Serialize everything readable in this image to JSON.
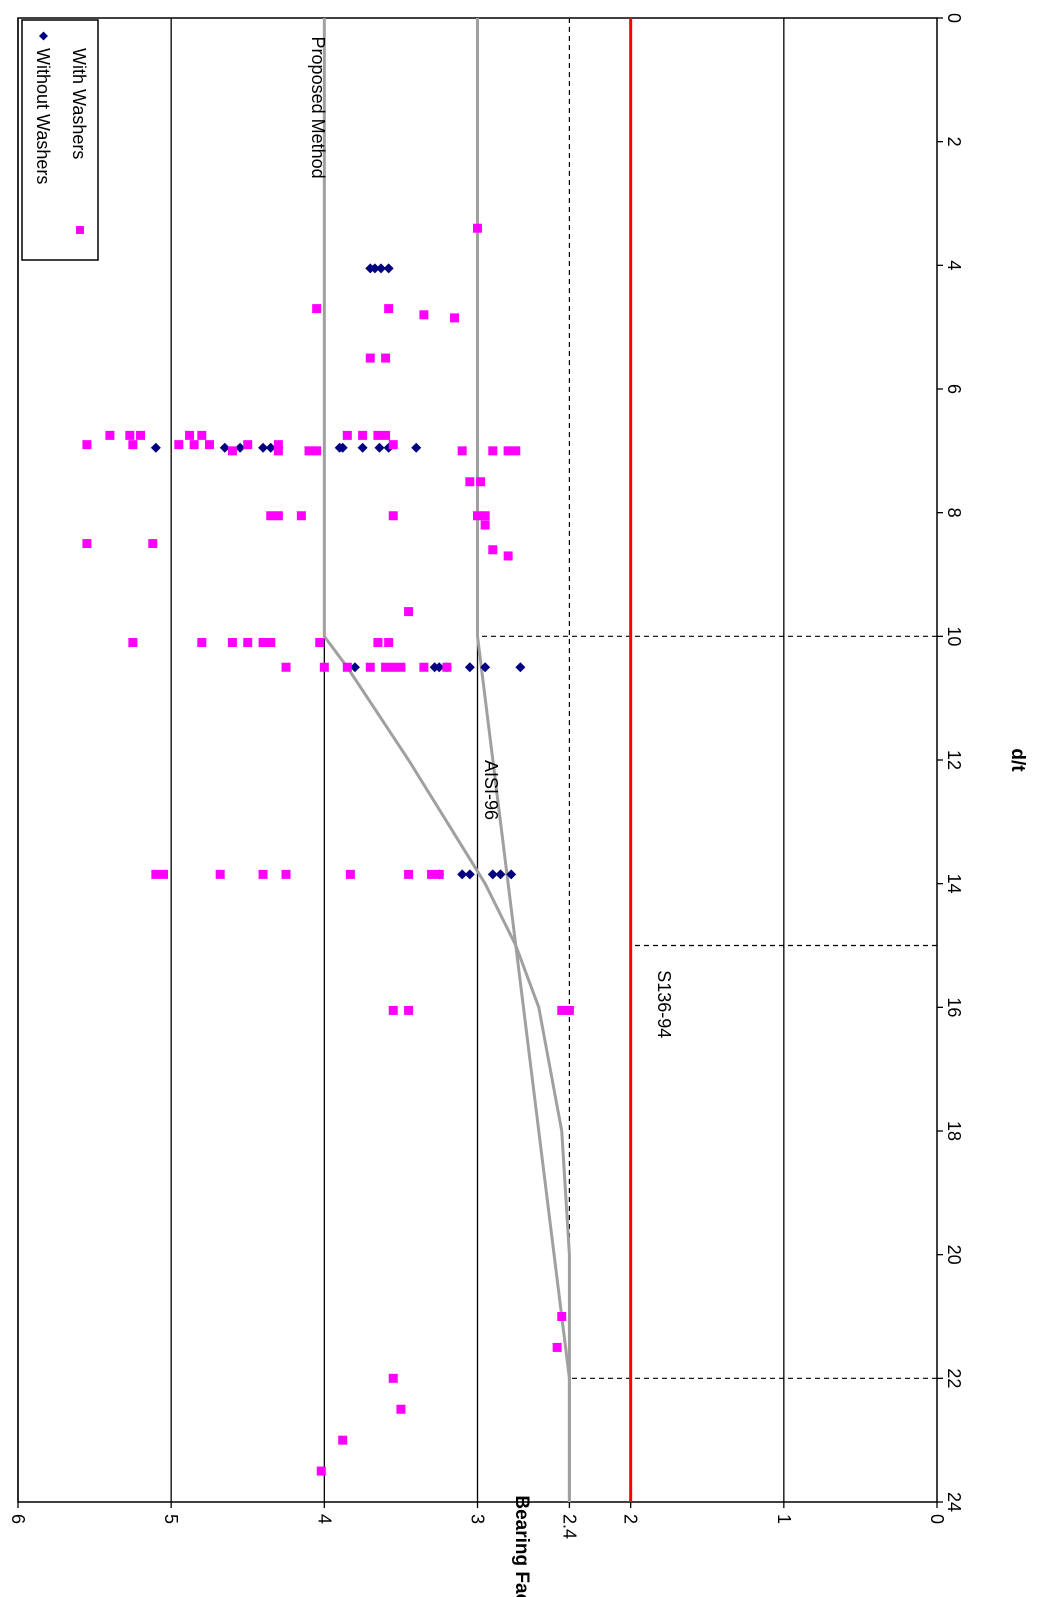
{
  "chart_data": {
    "type": "scatter",
    "xlabel": "d/t",
    "ylabel": "Bearing Factor, C",
    "xlim": [
      0,
      24
    ],
    "ylim": [
      0,
      6
    ],
    "x_ticks": [
      "0",
      "2",
      "4",
      "6",
      "8",
      "10",
      "12",
      "14",
      "16",
      "18",
      "20",
      "22",
      "24"
    ],
    "y_ticks": [
      "0",
      "1",
      "2",
      "2.4",
      "3",
      "4",
      "5",
      "6"
    ],
    "gridlines_y": [
      1,
      2,
      3,
      4,
      5,
      6
    ],
    "dashed_lines": [
      {
        "from": [
          0,
          2.4
        ],
        "to": [
          22,
          2.4
        ]
      },
      {
        "from": [
          10,
          0
        ],
        "to": [
          10,
          3
        ]
      },
      {
        "from": [
          15,
          0
        ],
        "to": [
          15,
          2
        ]
      },
      {
        "from": [
          22,
          0
        ],
        "to": [
          22,
          2.4
        ]
      }
    ],
    "colors": {
      "without": "#000080",
      "with": "#ff00ff",
      "s136": "#ff0000",
      "aisi": "#a0a0a0",
      "grid": "#000000"
    },
    "legend": {
      "position": "top-right",
      "entries": [
        "Without Washers",
        "With Washers"
      ]
    },
    "lines": [
      {
        "name": "AISI-96",
        "color": "#a0a0a0",
        "points": [
          [
            0,
            3
          ],
          [
            10,
            3
          ],
          [
            22,
            2.4
          ],
          [
            24,
            2.4
          ]
        ],
        "label": "AISI-96",
        "label_at": [
          12.0,
          2.95
        ]
      },
      {
        "name": "S136-94",
        "color": "#ff0000",
        "points": [
          [
            0,
            2
          ],
          [
            15,
            2
          ],
          [
            16,
            2
          ],
          [
            24,
            2
          ]
        ],
        "label": "S136-94",
        "label_at": [
          15.4,
          1.82
        ]
      },
      {
        "name": "Proposed Method",
        "color": "#a0a0a0",
        "points": [
          [
            0,
            4
          ],
          [
            10,
            4
          ],
          [
            10.5,
            3.85
          ],
          [
            12,
            3.45
          ],
          [
            13,
            3.2
          ],
          [
            14,
            2.95
          ],
          [
            15,
            2.75
          ],
          [
            16,
            2.6
          ],
          [
            18,
            2.45
          ],
          [
            20,
            2.4
          ],
          [
            24,
            2.4
          ]
        ],
        "label": "Proposed Method",
        "label_at": [
          0.3,
          4.08
        ]
      }
    ],
    "series": [
      {
        "name": "Without Washers",
        "marker": "diamond",
        "points": [
          [
            4.05,
            3.7
          ],
          [
            4.05,
            3.63
          ],
          [
            4.05,
            3.58
          ],
          [
            4.05,
            3.67
          ],
          [
            6.95,
            5.1
          ],
          [
            6.95,
            4.65
          ],
          [
            6.95,
            4.55
          ],
          [
            6.95,
            4.4
          ],
          [
            6.95,
            4.3
          ],
          [
            6.95,
            3.88
          ],
          [
            6.95,
            3.75
          ],
          [
            6.95,
            3.64
          ],
          [
            6.95,
            3.58
          ],
          [
            6.95,
            3.4
          ],
          [
            6.95,
            3.9
          ],
          [
            6.95,
            4.35
          ],
          [
            10.5,
            3.8
          ],
          [
            10.5,
            3.28
          ],
          [
            10.5,
            3.2
          ],
          [
            10.5,
            3.05
          ],
          [
            10.5,
            2.72
          ],
          [
            10.5,
            2.95
          ],
          [
            10.5,
            3.25
          ],
          [
            13.85,
            3.25
          ],
          [
            13.85,
            3.05
          ],
          [
            13.85,
            2.9
          ],
          [
            13.85,
            2.85
          ],
          [
            13.85,
            2.78
          ],
          [
            13.85,
            3.1
          ]
        ]
      },
      {
        "name": "With Washers",
        "marker": "square",
        "points": [
          [
            3.4,
            3.0
          ],
          [
            4.7,
            4.05
          ],
          [
            4.7,
            3.58
          ],
          [
            4.8,
            3.35
          ],
          [
            4.85,
            3.15
          ],
          [
            5.5,
            3.7
          ],
          [
            5.5,
            3.6
          ],
          [
            6.75,
            5.4
          ],
          [
            6.75,
            5.27
          ],
          [
            6.75,
            5.2
          ],
          [
            6.75,
            4.88
          ],
          [
            6.75,
            4.8
          ],
          [
            6.75,
            3.85
          ],
          [
            6.75,
            3.75
          ],
          [
            6.75,
            3.65
          ],
          [
            6.75,
            3.6
          ],
          [
            6.9,
            5.55
          ],
          [
            6.9,
            5.25
          ],
          [
            6.9,
            4.95
          ],
          [
            6.9,
            4.85
          ],
          [
            6.9,
            4.75
          ],
          [
            6.9,
            4.5
          ],
          [
            6.9,
            4.3
          ],
          [
            6.9,
            3.55
          ],
          [
            7.0,
            4.6
          ],
          [
            7.0,
            4.3
          ],
          [
            7.0,
            4.1
          ],
          [
            7.0,
            4.05
          ],
          [
            7.0,
            3.1
          ],
          [
            7.0,
            2.9
          ],
          [
            7.0,
            2.8
          ],
          [
            7.0,
            2.75
          ],
          [
            7.5,
            3.05
          ],
          [
            7.5,
            2.98
          ],
          [
            8.05,
            4.35
          ],
          [
            8.05,
            4.3
          ],
          [
            8.05,
            4.15
          ],
          [
            8.05,
            3.55
          ],
          [
            8.05,
            3.0
          ],
          [
            8.05,
            2.95
          ],
          [
            8.2,
            2.95
          ],
          [
            8.5,
            5.55
          ],
          [
            8.5,
            5.12
          ],
          [
            8.6,
            2.9
          ],
          [
            8.7,
            2.8
          ],
          [
            9.6,
            3.45
          ],
          [
            10.1,
            5.25
          ],
          [
            10.1,
            4.8
          ],
          [
            10.1,
            4.6
          ],
          [
            10.1,
            4.5
          ],
          [
            10.1,
            4.4
          ],
          [
            10.1,
            4.35
          ],
          [
            10.1,
            4.03
          ],
          [
            10.1,
            3.65
          ],
          [
            10.1,
            3.58
          ],
          [
            10.5,
            4.25
          ],
          [
            10.5,
            4.0
          ],
          [
            10.5,
            3.85
          ],
          [
            10.5,
            3.7
          ],
          [
            10.5,
            3.6
          ],
          [
            10.5,
            3.55
          ],
          [
            10.5,
            3.5
          ],
          [
            10.5,
            3.35
          ],
          [
            10.5,
            3.2
          ],
          [
            13.85,
            5.1
          ],
          [
            13.85,
            5.05
          ],
          [
            13.85,
            4.68
          ],
          [
            13.85,
            4.4
          ],
          [
            13.85,
            4.25
          ],
          [
            13.85,
            3.83
          ],
          [
            13.85,
            3.45
          ],
          [
            13.85,
            3.3
          ],
          [
            13.85,
            3.25
          ],
          [
            16.05,
            3.55
          ],
          [
            16.05,
            3.45
          ],
          [
            16.05,
            2.45
          ],
          [
            16.05,
            2.4
          ],
          [
            21.0,
            2.45
          ],
          [
            21.5,
            2.48
          ],
          [
            22.0,
            3.55
          ],
          [
            22.5,
            3.5
          ],
          [
            23.0,
            3.88
          ],
          [
            23.5,
            4.02
          ]
        ]
      }
    ]
  }
}
